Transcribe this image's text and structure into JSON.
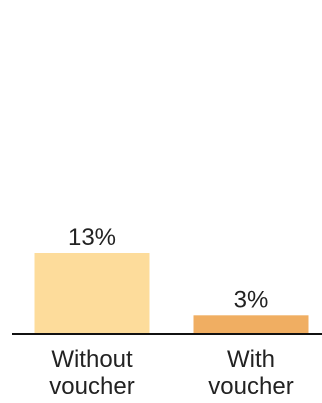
{
  "chart_data": {
    "type": "bar",
    "title": "",
    "xlabel": "",
    "ylabel": "",
    "ylim": [
      0,
      13
    ],
    "grid": false,
    "legend": "none",
    "categories": [
      [
        "Without",
        "voucher"
      ],
      [
        "With",
        "voucher"
      ]
    ],
    "values": [
      13,
      3
    ],
    "value_labels": [
      "13%",
      "3%"
    ],
    "unit": "%",
    "colors": [
      "#FDDC9B",
      "#F0AE62"
    ],
    "axis_color": "#111111",
    "text_color": "#222222"
  }
}
